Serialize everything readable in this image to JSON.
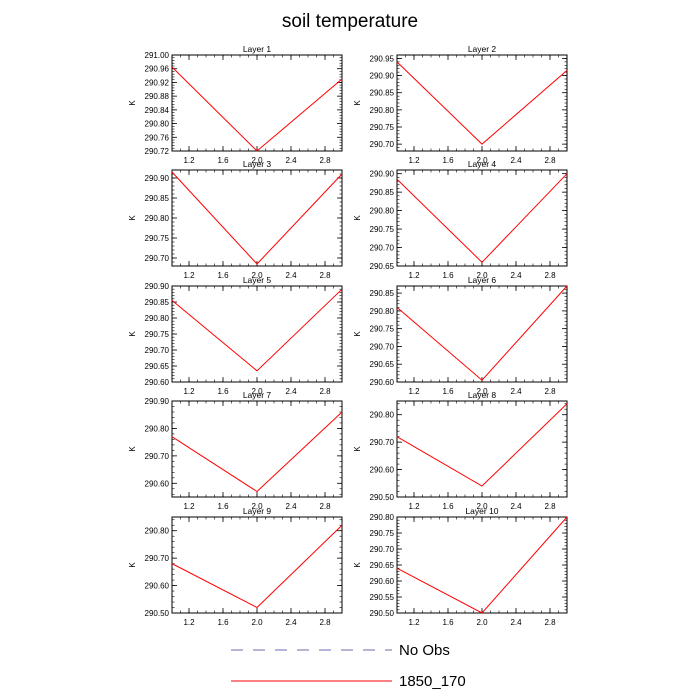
{
  "chart_data": {
    "type": "line",
    "title": "soil temperature",
    "xlabel": "",
    "ylabel": "K",
    "x": [
      1.0,
      2.0,
      3.0
    ],
    "xlim": [
      1.0,
      3.0
    ],
    "xticks": [
      "1.2",
      "1.6",
      "2.0",
      "2.4",
      "2.8"
    ],
    "legend": {
      "placement": "bottom-center",
      "entries": [
        {
          "name": "No Obs",
          "color": "#6b6bb0",
          "style": "dashed"
        },
        {
          "name": "1850_170",
          "color": "#ff0000",
          "style": "solid"
        }
      ]
    },
    "panels": [
      {
        "title": "Layer 1",
        "ylim": [
          290.72,
          291.0
        ],
        "yticks": [
          "291.00",
          "290.96",
          "290.92",
          "290.88",
          "290.84",
          "290.80",
          "290.76",
          "290.72"
        ],
        "series": [
          {
            "name": "1850_170",
            "values": [
              290.965,
              290.72,
              290.93
            ]
          }
        ]
      },
      {
        "title": "Layer 2",
        "ylim": [
          290.68,
          290.96
        ],
        "yticks": [
          "290.95",
          "290.90",
          "290.85",
          "290.80",
          "290.75",
          "290.70"
        ],
        "series": [
          {
            "name": "1850_170",
            "values": [
              290.94,
              290.7,
              290.915
            ]
          }
        ]
      },
      {
        "title": "Layer 3",
        "ylim": [
          290.68,
          290.92
        ],
        "yticks": [
          "290.90",
          "290.85",
          "290.80",
          "290.75",
          "290.70"
        ],
        "series": [
          {
            "name": "1850_170",
            "values": [
              290.915,
              290.685,
              290.91
            ]
          }
        ]
      },
      {
        "title": "Layer 4",
        "ylim": [
          290.65,
          290.91
        ],
        "yticks": [
          "290.90",
          "290.85",
          "290.80",
          "290.75",
          "290.70",
          "290.65"
        ],
        "series": [
          {
            "name": "1850_170",
            "values": [
              290.885,
              290.66,
              290.9
            ]
          }
        ]
      },
      {
        "title": "Layer 5",
        "ylim": [
          290.6,
          290.9
        ],
        "yticks": [
          "290.90",
          "290.85",
          "290.80",
          "290.75",
          "290.70",
          "290.65",
          "290.60"
        ],
        "series": [
          {
            "name": "1850_170",
            "values": [
              290.855,
              290.635,
              290.89
            ]
          }
        ]
      },
      {
        "title": "Layer 6",
        "ylim": [
          290.6,
          290.87
        ],
        "yticks": [
          "290.85",
          "290.80",
          "290.75",
          "290.70",
          "290.65",
          "290.60"
        ],
        "series": [
          {
            "name": "1850_170",
            "values": [
              290.81,
              290.605,
              290.87
            ]
          }
        ]
      },
      {
        "title": "Layer 7",
        "ylim": [
          290.55,
          290.9
        ],
        "yticks": [
          "290.90",
          "290.80",
          "290.70",
          "290.60"
        ],
        "series": [
          {
            "name": "1850_170",
            "values": [
              290.77,
              290.57,
              290.86
            ]
          }
        ]
      },
      {
        "title": "Layer 8",
        "ylim": [
          290.5,
          290.85
        ],
        "yticks": [
          "290.80",
          "290.70",
          "290.60",
          "290.50"
        ],
        "series": [
          {
            "name": "1850_170",
            "values": [
              290.72,
              290.54,
              290.84
            ]
          }
        ]
      },
      {
        "title": "Layer 9",
        "ylim": [
          290.5,
          290.85
        ],
        "yticks": [
          "290.80",
          "290.70",
          "290.60",
          "290.50"
        ],
        "series": [
          {
            "name": "1850_170",
            "values": [
              290.68,
              290.52,
              290.82
            ]
          }
        ]
      },
      {
        "title": "Layer 10",
        "ylim": [
          290.5,
          290.8
        ],
        "yticks": [
          "290.80",
          "290.75",
          "290.70",
          "290.65",
          "290.60",
          "290.55",
          "290.50"
        ],
        "series": [
          {
            "name": "1850_170",
            "values": [
              290.64,
              290.5,
              290.8
            ]
          }
        ]
      }
    ]
  }
}
